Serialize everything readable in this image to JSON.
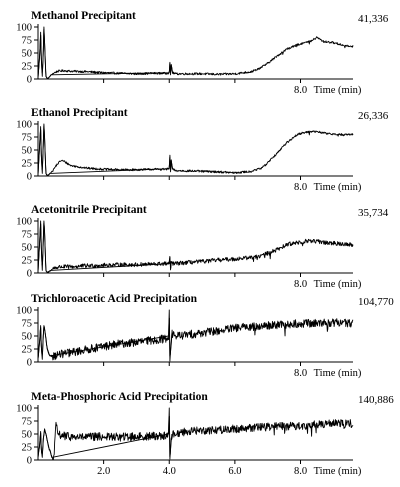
{
  "chart_data": [
    {
      "type": "line",
      "title": "Methanol Precipitant",
      "count_label": "41,336",
      "xlabel": "Time (min)",
      "xlim": [
        0,
        9.6
      ],
      "ylim": [
        0,
        100
      ],
      "yticks": [
        0,
        25,
        50,
        75,
        100
      ],
      "xticks": [
        2.0,
        4.0,
        6.0,
        8.0
      ],
      "xtick_labels": [
        "",
        "",
        "",
        "8.0"
      ],
      "noise": 2,
      "series": [
        {
          "x": [
            0,
            0.05,
            0.08,
            0.1,
            0.13,
            0.16,
            0.18,
            0.2,
            0.24,
            0.28,
            0.32,
            0.36,
            0.4,
            0.5,
            0.6,
            0.8,
            1.0,
            1.5,
            2.0,
            2.5,
            3.0,
            3.5,
            3.9,
            4.0,
            4.02,
            4.04,
            4.06,
            4.1,
            4.2,
            4.5,
            5.0,
            5.5,
            6.0,
            6.5,
            6.8,
            7.0,
            7.3,
            7.6,
            8.0,
            8.3,
            8.5,
            8.7,
            9.0,
            9.3,
            9.6
          ],
          "y": [
            2,
            45,
            90,
            40,
            5,
            50,
            100,
            70,
            5,
            1,
            2,
            5,
            8,
            12,
            15,
            16,
            15,
            14,
            12,
            11,
            10,
            11,
            11,
            12,
            32,
            8,
            28,
            12,
            10,
            10,
            10,
            9,
            10,
            14,
            22,
            30,
            45,
            58,
            68,
            72,
            80,
            72,
            70,
            65,
            63
          ]
        }
      ]
    },
    {
      "type": "line",
      "title": "Ethanol Precipitant",
      "count_label": "26,336",
      "xlabel": "Time (min)",
      "xlim": [
        0,
        9.6
      ],
      "ylim": [
        0,
        100
      ],
      "yticks": [
        0,
        25,
        50,
        75,
        100
      ],
      "xticks": [
        2.0,
        4.0,
        6.0,
        8.0
      ],
      "xtick_labels": [
        "",
        "",
        "",
        "8.0"
      ],
      "noise": 2,
      "series": [
        {
          "x": [
            0,
            0.05,
            0.08,
            0.1,
            0.13,
            0.16,
            0.18,
            0.2,
            0.24,
            0.28,
            0.32,
            0.36,
            0.45,
            0.55,
            0.7,
            0.8,
            1.0,
            1.5,
            2.0,
            2.5,
            3.0,
            3.5,
            3.9,
            4.0,
            4.02,
            4.04,
            4.06,
            4.1,
            4.2,
            4.5,
            5.0,
            5.5,
            6.0,
            6.5,
            6.8,
            7.0,
            7.3,
            7.6,
            7.9,
            8.2,
            8.5,
            9.0,
            9.3,
            9.6
          ],
          "y": [
            2,
            60,
            95,
            40,
            5,
            60,
            100,
            75,
            5,
            1,
            2,
            5,
            10,
            20,
            30,
            28,
            20,
            15,
            13,
            12,
            12,
            13,
            13,
            14,
            40,
            8,
            30,
            13,
            10,
            10,
            9,
            8,
            6,
            9,
            15,
            25,
            45,
            65,
            80,
            85,
            85,
            80,
            80,
            80
          ]
        }
      ]
    },
    {
      "type": "line",
      "title": "Acetonitrile Precipitant",
      "count_label": "35,734",
      "xlabel": "Time (min)",
      "xlim": [
        0,
        9.6
      ],
      "ylim": [
        0,
        100
      ],
      "yticks": [
        0,
        25,
        50,
        75,
        100
      ],
      "xticks": [
        2.0,
        4.0,
        6.0,
        8.0
      ],
      "xtick_labels": [
        "",
        "",
        "",
        "8.0"
      ],
      "noise": 4,
      "series": [
        {
          "x": [
            0,
            0.05,
            0.08,
            0.1,
            0.13,
            0.16,
            0.18,
            0.2,
            0.24,
            0.28,
            0.32,
            0.38,
            0.5,
            0.7,
            1.0,
            1.5,
            2.0,
            2.5,
            3.0,
            3.5,
            3.9,
            4.0,
            4.02,
            4.04,
            4.06,
            4.1,
            4.2,
            4.5,
            5.0,
            5.5,
            6.0,
            6.5,
            6.8,
            7.0,
            7.3,
            7.6,
            8.0,
            8.3,
            8.6,
            9.0,
            9.3,
            9.6
          ],
          "y": [
            2,
            60,
            100,
            50,
            5,
            60,
            100,
            80,
            5,
            1,
            2,
            5,
            10,
            12,
            12,
            14,
            15,
            16,
            16,
            17,
            18,
            18,
            30,
            6,
            22,
            18,
            18,
            20,
            22,
            25,
            27,
            30,
            33,
            38,
            45,
            55,
            60,
            62,
            60,
            57,
            56,
            55
          ]
        }
      ]
    },
    {
      "type": "line",
      "title": "Trichloroacetic Acid Precipitation",
      "count_label": "104,770",
      "xlabel": "Time (min)",
      "xlim": [
        0,
        9.6
      ],
      "ylim": [
        0,
        100
      ],
      "yticks": [
        0,
        25,
        50,
        75,
        100
      ],
      "xticks": [
        2.0,
        4.0,
        6.0,
        8.0
      ],
      "xtick_labels": [
        "",
        "",
        "",
        "8.0"
      ],
      "noise": 8,
      "series": [
        {
          "x": [
            0,
            0.05,
            0.08,
            0.1,
            0.13,
            0.16,
            0.18,
            0.22,
            0.28,
            0.33,
            0.38,
            0.5,
            0.7,
            1.0,
            1.5,
            2.0,
            2.5,
            3.0,
            3.5,
            3.9,
            3.98,
            4.0,
            4.02,
            4.05,
            4.08,
            4.12,
            4.2,
            4.5,
            5.0,
            5.5,
            6.0,
            6.5,
            7.0,
            7.5,
            8.0,
            8.5,
            9.0,
            9.6
          ],
          "y": [
            5,
            40,
            70,
            30,
            5,
            50,
            70,
            55,
            25,
            15,
            12,
            12,
            15,
            18,
            24,
            30,
            35,
            38,
            42,
            45,
            50,
            100,
            2,
            30,
            55,
            52,
            50,
            52,
            56,
            60,
            65,
            68,
            70,
            72,
            74,
            75,
            76,
            75
          ]
        }
      ]
    },
    {
      "type": "line",
      "title": "Meta-Phosphoric Acid Precipitation",
      "count_label": "140,886",
      "xlabel": "Time (min)",
      "xlim": [
        0,
        9.6
      ],
      "ylim": [
        0,
        100
      ],
      "yticks": [
        0,
        25,
        50,
        75,
        100
      ],
      "xticks": [
        2.0,
        4.0,
        6.0,
        8.0
      ],
      "xtick_labels": [
        "2.0",
        "4.0",
        "6.0",
        "8.0"
      ],
      "noise": 8,
      "series": [
        {
          "x": [
            0,
            0.05,
            0.08,
            0.1,
            0.13,
            0.16,
            0.2,
            0.26,
            0.32,
            0.38,
            0.42,
            0.46,
            0.5,
            0.55,
            0.6,
            0.7,
            0.9,
            1.2,
            1.5,
            2.0,
            2.5,
            3.0,
            3.5,
            3.9,
            3.98,
            4.0,
            4.02,
            4.05,
            4.08,
            4.15,
            4.3,
            4.5,
            5.0,
            5.5,
            6.0,
            6.5,
            7.0,
            7.5,
            8.0,
            8.5,
            9.0,
            9.6
          ],
          "y": [
            5,
            30,
            55,
            20,
            5,
            40,
            60,
            45,
            25,
            15,
            5,
            0,
            20,
            70,
            50,
            48,
            45,
            44,
            44,
            45,
            44,
            45,
            46,
            47,
            50,
            100,
            2,
            30,
            50,
            50,
            52,
            55,
            57,
            58,
            60,
            62,
            64,
            65,
            66,
            68,
            70,
            70
          ]
        }
      ]
    }
  ]
}
